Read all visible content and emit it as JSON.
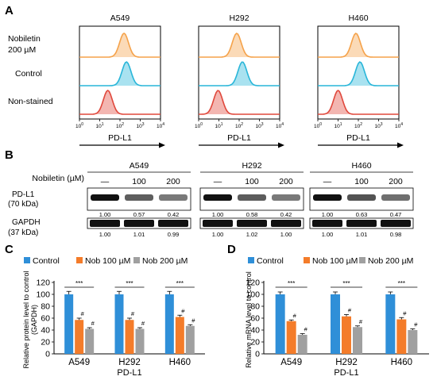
{
  "panel_labels": [
    "A",
    "B",
    "C",
    "D"
  ],
  "colors": {
    "nobiletin": "#f5a24a",
    "control": "#29b6d9",
    "non_stained": "#e0483c",
    "bar_control": "#2f8fd8",
    "bar_nob100": "#f47c2a",
    "bar_nob200": "#a0a0a0"
  },
  "panelA": {
    "cell_lines": [
      "A549",
      "H292",
      "H460"
    ],
    "row_labels": [
      "Nobiletin",
      "200 µM",
      "Control",
      "Non-stained"
    ],
    "x_axis_label": "PD-L1",
    "tick_exponents": [
      "0",
      "1",
      "2",
      "3",
      "4"
    ],
    "tick_base": "10"
  },
  "panelB": {
    "treatment_label": "Nobiletin (µM)",
    "cell_lines": [
      "A549",
      "H292",
      "H460"
    ],
    "doses": [
      "—",
      "100",
      "200"
    ],
    "rows": [
      {
        "label_1": "PD-L1",
        "label_2": "(70 kDa)"
      },
      {
        "label_1": "GAPDH",
        "label_2": "(37 kDa)"
      }
    ],
    "pdl1_quant": [
      [
        "1.00",
        "0.57",
        "0.42"
      ],
      [
        "1.00",
        "0.58",
        "0.42"
      ],
      [
        "1.00",
        "0.63",
        "0.47"
      ]
    ],
    "gapdh_quant": [
      [
        "1.00",
        "1.01",
        "0.99"
      ],
      [
        "1.00",
        "1.02",
        "1.00"
      ],
      [
        "1.00",
        "1.01",
        "0.98"
      ]
    ],
    "band_intensity": [
      [
        1.0,
        0.57,
        0.42
      ],
      [
        1.0,
        0.58,
        0.42
      ],
      [
        1.0,
        0.63,
        0.47
      ]
    ]
  },
  "chart_data": [
    {
      "type": "bar",
      "panel": "C",
      "categories": [
        "A549",
        "H292",
        "H460"
      ],
      "xlabel": "PD-L1",
      "ylabel": "Relative protein level to control\n(GAPDH)",
      "ylim": [
        0,
        120
      ],
      "yticks": [
        "0",
        "20",
        "40",
        "60",
        "80",
        "100",
        "120"
      ],
      "legend": "top",
      "series": [
        {
          "name": "Control",
          "values": [
            100,
            100,
            100
          ],
          "errors": [
            5,
            5,
            5
          ],
          "color": "#2f8fd8"
        },
        {
          "name": "Nob 100 µM",
          "values": [
            57,
            57,
            62
          ],
          "errors": [
            3,
            3,
            3
          ],
          "color": "#f47c2a"
        },
        {
          "name": "Nob 200 µM",
          "values": [
            42,
            42,
            47
          ],
          "errors": [
            2,
            2,
            2
          ],
          "color": "#a0a0a0"
        }
      ],
      "significance": "***",
      "hash_mark": "#"
    },
    {
      "type": "bar",
      "panel": "D",
      "categories": [
        "A549",
        "H292",
        "H460"
      ],
      "xlabel": "PD-L1",
      "ylabel": "Relative mRNA level to control",
      "ylim": [
        0,
        120
      ],
      "yticks": [
        "0",
        "20",
        "40",
        "60",
        "80",
        "100",
        "120"
      ],
      "legend": "top",
      "series": [
        {
          "name": "Control",
          "values": [
            100,
            100,
            100
          ],
          "errors": [
            4,
            4,
            4
          ],
          "color": "#2f8fd8"
        },
        {
          "name": "Nob 100 µM",
          "values": [
            55,
            63,
            58
          ],
          "errors": [
            2,
            3,
            3
          ],
          "color": "#f47c2a"
        },
        {
          "name": "Nob 200 µM",
          "values": [
            32,
            45,
            40
          ],
          "errors": [
            2,
            2,
            2
          ],
          "color": "#a0a0a0"
        }
      ],
      "significance": "***",
      "hash_mark": "#"
    }
  ]
}
